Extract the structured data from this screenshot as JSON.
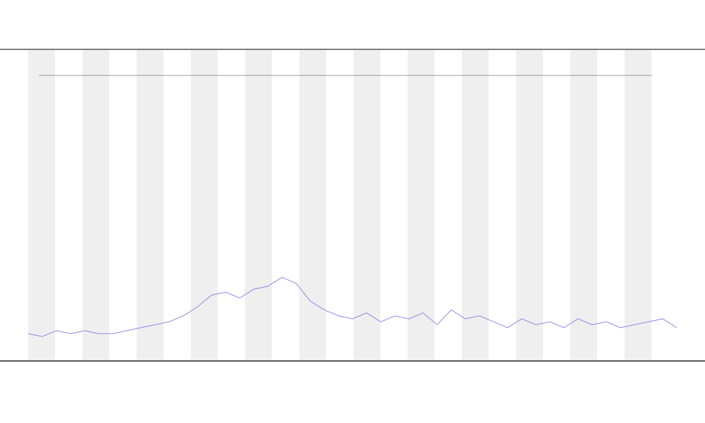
{
  "chart_data": {
    "type": "line",
    "x": [
      0,
      1,
      2,
      3,
      4,
      5,
      6,
      7,
      8,
      9,
      10,
      11,
      12,
      13,
      14,
      15,
      16,
      17,
      18,
      19,
      20,
      21,
      22,
      23,
      24,
      25,
      26,
      27,
      28,
      29,
      30,
      31,
      32,
      33,
      34,
      35,
      36,
      37,
      38,
      39,
      40,
      41,
      42,
      43,
      44,
      45,
      46
    ],
    "series": [
      {
        "color": "#6f6fe0",
        "values": [
          4,
          3,
          5,
          4,
          5,
          4,
          4,
          5,
          6,
          7,
          8,
          10,
          13,
          17,
          18,
          16,
          19,
          20,
          23,
          21,
          15,
          12,
          10,
          9,
          11,
          8,
          10,
          9,
          11,
          7,
          12,
          9,
          10,
          8,
          6,
          9,
          7,
          8,
          6,
          9,
          7,
          8,
          6,
          7,
          8,
          9,
          6
        ]
      }
    ],
    "xlim": [
      0,
      46
    ],
    "ylim": [
      0,
      100
    ]
  }
}
